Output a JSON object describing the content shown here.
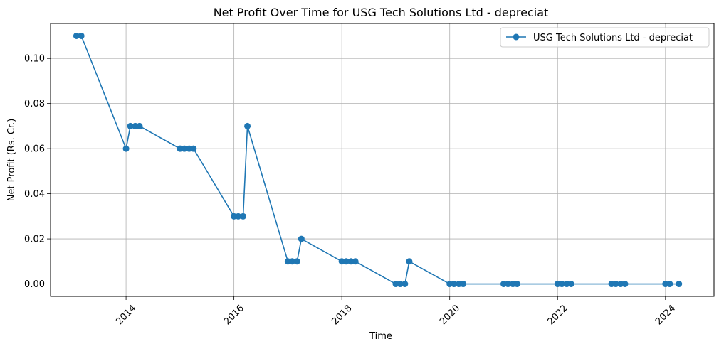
{
  "chart_data": {
    "type": "line",
    "title": "Net Profit Over Time for USG Tech Solutions Ltd - depreciat",
    "xlabel": "Time",
    "ylabel": "Net Profit (Rs. Cr.)",
    "xlim": [
      2012.6,
      2024.9
    ],
    "ylim": [
      -0.0055,
      0.1155
    ],
    "xticks": [
      2014,
      2016,
      2018,
      2020,
      2022,
      2024
    ],
    "xtick_labels": [
      "2014",
      "2016",
      "2018",
      "2020",
      "2022",
      "2024"
    ],
    "yticks": [
      0.0,
      0.02,
      0.04,
      0.06,
      0.08,
      0.1
    ],
    "ytick_labels": [
      "0.00",
      "0.02",
      "0.04",
      "0.06",
      "0.08",
      "0.10"
    ],
    "grid": true,
    "legend_position": "upper-right",
    "colors": {
      "series": "#1f77b4"
    },
    "series": [
      {
        "name": "USG Tech Solutions Ltd - depreciat",
        "x": [
          2013.08,
          2013.17,
          2014.0,
          2014.08,
          2014.17,
          2014.25,
          2015.0,
          2015.08,
          2015.17,
          2015.25,
          2016.0,
          2016.08,
          2016.17,
          2016.25,
          2017.0,
          2017.08,
          2017.17,
          2017.25,
          2018.0,
          2018.08,
          2018.17,
          2018.25,
          2019.0,
          2019.08,
          2019.17,
          2019.25,
          2020.0,
          2020.08,
          2020.17,
          2020.25,
          2021.0,
          2021.08,
          2021.17,
          2021.25,
          2022.0,
          2022.08,
          2022.17,
          2022.25,
          2023.0,
          2023.08,
          2023.17,
          2023.25,
          2024.0,
          2024.08,
          2024.25
        ],
        "y": [
          0.11,
          0.11,
          0.06,
          0.07,
          0.07,
          0.07,
          0.06,
          0.06,
          0.06,
          0.06,
          0.03,
          0.03,
          0.03,
          0.07,
          0.01,
          0.01,
          0.01,
          0.02,
          0.01,
          0.01,
          0.01,
          0.01,
          0.0,
          0.0,
          0.0,
          0.01,
          0.0,
          0.0,
          0.0,
          0.0,
          0.0,
          0.0,
          0.0,
          0.0,
          0.0,
          0.0,
          0.0,
          0.0,
          0.0,
          0.0,
          0.0,
          0.0,
          0.0,
          0.0,
          0.0
        ]
      }
    ]
  }
}
